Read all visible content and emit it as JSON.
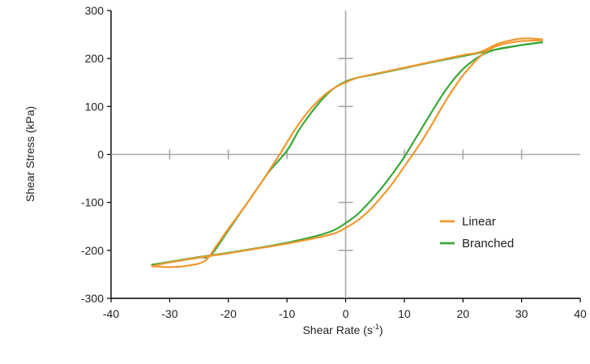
{
  "chart_data": {
    "type": "line",
    "xlabel": "Shear Rate (s",
    "xlabel_superscript": "-1",
    "xlabel_suffix": ")",
    "ylabel": "Shear Stress (kPa)",
    "xlim": [
      -40,
      40
    ],
    "ylim": [
      -300,
      300
    ],
    "xticks": [
      -40,
      -30,
      -20,
      -10,
      0,
      10,
      20,
      30,
      40
    ],
    "yticks": [
      -300,
      -200,
      -100,
      0,
      100,
      200,
      300
    ],
    "grid": false,
    "zero_axes": true,
    "legend_position": "lower-right",
    "series": [
      {
        "name": "Linear",
        "color": "#f2982e",
        "upper": {
          "x": [
            -33,
            -30,
            -27,
            -24,
            -22,
            -20,
            -17,
            -15,
            -13,
            -11,
            -9,
            -7,
            -5,
            -3,
            -1,
            0,
            2,
            5,
            10,
            15,
            20,
            23,
            26,
            29,
            31,
            33.5
          ],
          "y": [
            -233,
            -235,
            -232,
            -222,
            -190,
            -155,
            -105,
            -70,
            -33,
            5,
            45,
            80,
            108,
            130,
            145,
            150,
            160,
            168,
            181,
            194,
            207,
            214,
            231,
            240,
            242,
            240
          ]
        },
        "lower": {
          "x": [
            -33,
            -30,
            -25,
            -20,
            -15,
            -10,
            -5,
            -2,
            0,
            2,
            4,
            6,
            8,
            10,
            12,
            14,
            16,
            18,
            20,
            22,
            23,
            24,
            26,
            29,
            31,
            33.5
          ],
          "y": [
            -233,
            -225,
            -215,
            -206,
            -196,
            -186,
            -174,
            -165,
            -153,
            -138,
            -117,
            -90,
            -60,
            -25,
            10,
            48,
            90,
            130,
            165,
            193,
            205,
            215,
            227,
            235,
            237,
            238
          ]
        }
      },
      {
        "name": "Branched",
        "color": "#3aa83a",
        "upper": {
          "x": [
            -33,
            -30,
            -25,
            -23,
            -20,
            -17,
            -15,
            -13,
            -10,
            -8,
            -6,
            -4,
            -2,
            0,
            2,
            5,
            10,
            15,
            20,
            25,
            30,
            33.5
          ],
          "y": [
            -230,
            -225,
            -215,
            -210,
            -158,
            -105,
            -70,
            -35,
            8,
            50,
            85,
            115,
            138,
            152,
            160,
            167,
            180,
            193,
            205,
            217,
            228,
            234
          ]
        },
        "lower": {
          "x": [
            -33,
            -30,
            -25,
            -20,
            -15,
            -10,
            -5,
            -2,
            0,
            2,
            4,
            6,
            8,
            10,
            12,
            14,
            16,
            18,
            20,
            22,
            24,
            26,
            30,
            33.5
          ],
          "y": [
            -230,
            -224,
            -214,
            -205,
            -195,
            -184,
            -170,
            -158,
            -143,
            -125,
            -100,
            -72,
            -40,
            -5,
            35,
            75,
            115,
            150,
            178,
            198,
            212,
            220,
            228,
            234
          ]
        }
      }
    ]
  }
}
